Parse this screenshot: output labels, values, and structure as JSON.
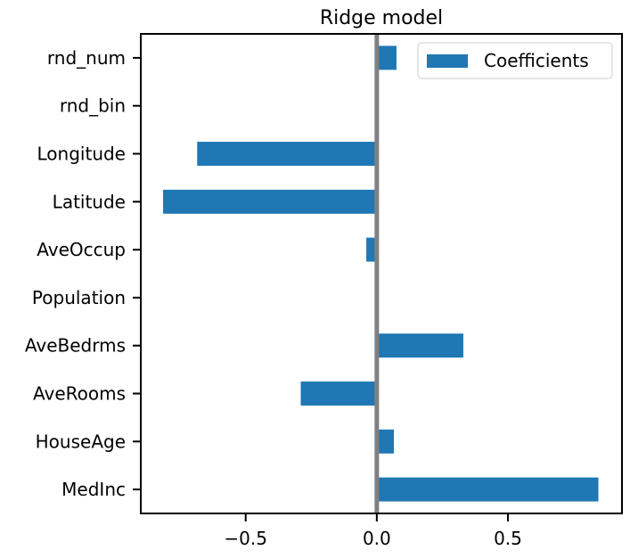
{
  "chart_data": {
    "type": "bar",
    "orientation": "horizontal",
    "title": "Ridge model",
    "xlabel": "",
    "ylabel": "",
    "categories": [
      "MedInc",
      "HouseAge",
      "AveRooms",
      "AveBedrms",
      "Population",
      "AveOccup",
      "Latitude",
      "Longitude",
      "rnd_bin",
      "rnd_num"
    ],
    "series": [
      {
        "name": "Coefficients",
        "color": "#1f77b4",
        "values": [
          0.845,
          0.065,
          -0.29,
          0.33,
          0.0,
          -0.04,
          -0.815,
          -0.685,
          0.0,
          0.075
        ]
      }
    ],
    "xlim": [
      -0.9,
      0.935
    ],
    "xticks": [
      -0.5,
      0.0,
      0.5
    ],
    "xtick_labels": [
      "−0.5",
      "0.0",
      "0.5"
    ],
    "zero_line_color": "#808080",
    "grid": false,
    "legend_position": "top-right"
  }
}
